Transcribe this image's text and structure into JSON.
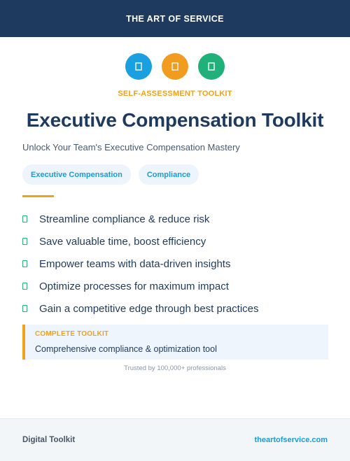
{
  "header": {
    "brand": "THE ART OF SERVICE"
  },
  "icons": [
    {
      "name": "blue-badge-icon",
      "color": "#1a9fe0"
    },
    {
      "name": "orange-badge-icon",
      "color": "#f29c1f"
    },
    {
      "name": "green-badge-icon",
      "color": "#20b07a"
    }
  ],
  "kicker": "SELF-ASSESSMENT TOOLKIT",
  "title": "Executive Compensation Toolkit",
  "subtitle": "Unlock Your Team's Executive Compensation Mastery",
  "tags": [
    "Executive Compensation",
    "Compliance"
  ],
  "features": [
    "Streamline compliance & reduce risk",
    "Save valuable time, boost efficiency",
    "Empower teams with data-driven insights",
    "Optimize processes for maximum impact",
    "Gain a competitive edge through best practices"
  ],
  "callout": {
    "title": "COMPLETE TOOLKIT",
    "body": "Comprehensive compliance & optimization tool"
  },
  "trusted": "Trusted by 100,000+ professionals",
  "footer": {
    "left": "Digital Toolkit",
    "right": "theartofservice.com"
  },
  "colors": {
    "navy": "#1f3a5f",
    "accent_orange": "#f2a11a",
    "accent_blue": "#1a9bd8",
    "accent_green": "#2bb673"
  }
}
